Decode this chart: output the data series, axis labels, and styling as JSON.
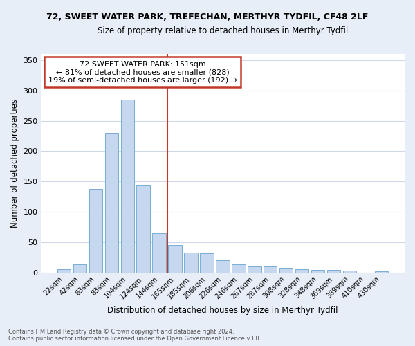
{
  "title": "72, SWEET WATER PARK, TREFECHAN, MERTHYR TYDFIL, CF48 2LF",
  "subtitle": "Size of property relative to detached houses in Merthyr Tydfil",
  "xlabel": "Distribution of detached houses by size in Merthyr Tydfil",
  "ylabel": "Number of detached properties",
  "categories": [
    "22sqm",
    "42sqm",
    "63sqm",
    "83sqm",
    "104sqm",
    "124sqm",
    "144sqm",
    "165sqm",
    "185sqm",
    "206sqm",
    "226sqm",
    "246sqm",
    "267sqm",
    "287sqm",
    "308sqm",
    "328sqm",
    "348sqm",
    "369sqm",
    "389sqm",
    "410sqm",
    "430sqm"
  ],
  "values": [
    5,
    14,
    138,
    230,
    285,
    143,
    65,
    46,
    33,
    32,
    20,
    14,
    10,
    10,
    7,
    5,
    4,
    4,
    3,
    0,
    2
  ],
  "bar_color": "#c5d8f0",
  "bar_edge_color": "#7aadd4",
  "vline_x": 6.5,
  "vline_color": "#c0392b",
  "annotation_line1": "72 SWEET WATER PARK: 151sqm",
  "annotation_line2": "← 81% of detached houses are smaller (828)",
  "annotation_line3": "19% of semi-detached houses are larger (192) →",
  "annotation_box_color": "#c0392b",
  "fig_background_color": "#e8eef8",
  "plot_background_color": "#ffffff",
  "grid_color": "#d0d8e8",
  "ylim": [
    0,
    360
  ],
  "yticks": [
    0,
    50,
    100,
    150,
    200,
    250,
    300,
    350
  ],
  "footnote1": "Contains HM Land Registry data © Crown copyright and database right 2024.",
  "footnote2": "Contains public sector information licensed under the Open Government Licence v3.0."
}
